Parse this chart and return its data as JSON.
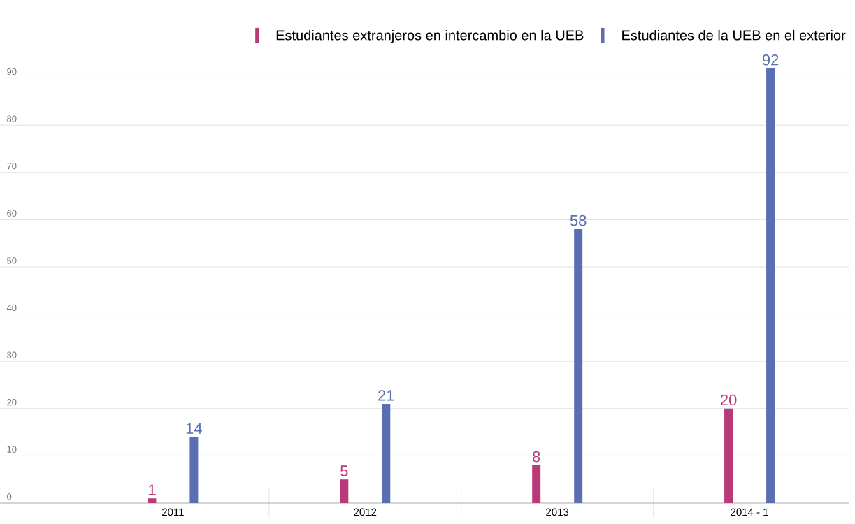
{
  "chart_data": {
    "type": "bar",
    "categories": [
      "2011",
      "2012",
      "2013",
      "2014 - 1"
    ],
    "series": [
      {
        "name": "Estudiantes extranjeros en intercambio en la UEB",
        "color": "#b83a78",
        "values": [
          1,
          5,
          8,
          20
        ]
      },
      {
        "name": "Estudiantes de la UEB en el exterior",
        "color": "#5a6fb3",
        "values": [
          14,
          21,
          58,
          92
        ]
      }
    ],
    "ylim": [
      0,
      92
    ],
    "yticks": [
      0,
      10,
      20,
      30,
      40,
      50,
      60,
      70,
      80,
      90
    ],
    "grid": "y",
    "legend": "top",
    "data_labels": true
  }
}
